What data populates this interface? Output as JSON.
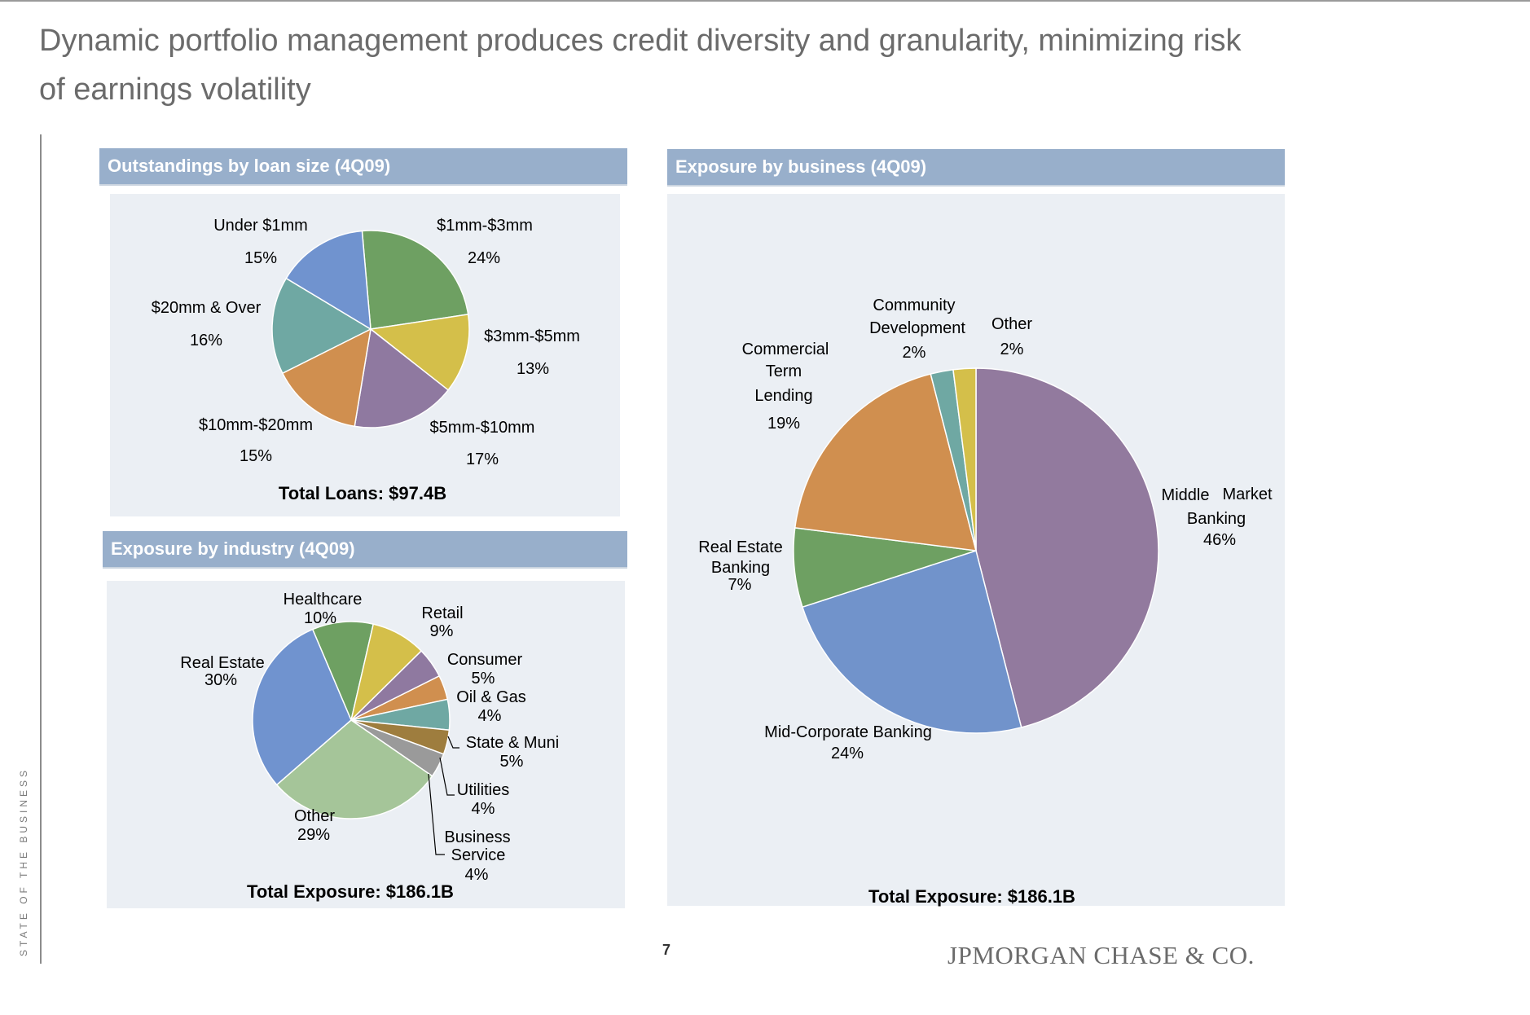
{
  "page": {
    "title_line1": "Dynamic portfolio management produces credit diversity and granularity, minimizing risk",
    "title_line2": "of earnings volatility",
    "side_label": "STATE OF THE BUSINESS",
    "page_number": "7",
    "logo_text": "JPMORGAN CHASE & CO."
  },
  "chart_data": [
    {
      "id": "loan-size",
      "type": "pie",
      "title": "Outstandings by loan size (4Q09)",
      "total_label": "Total Loans: $97.4B",
      "slices": [
        {
          "name": "$1mm-$3mm",
          "value": 24,
          "pct": "24%",
          "color": "#6ea062"
        },
        {
          "name": "$3mm-$5mm",
          "value": 13,
          "pct": "13%",
          "color": "#d4bf4a"
        },
        {
          "name": "$5mm-$10mm",
          "value": 17,
          "pct": "17%",
          "color": "#8f79a0"
        },
        {
          "name": "$10mm-$20mm",
          "value": 15,
          "pct": "15%",
          "color": "#d08f4f"
        },
        {
          "name": "$20mm & Over",
          "value": 16,
          "pct": "16%",
          "color": "#6fa8a3"
        },
        {
          "name": "Under $1mm",
          "value": 15,
          "pct": "15%",
          "color": "#7093cf"
        }
      ]
    },
    {
      "id": "industry",
      "type": "pie",
      "title": "Exposure by industry (4Q09)",
      "total_label": "Total Exposure: $186.1B",
      "slices": [
        {
          "name": "Healthcare",
          "value": 10,
          "pct": "10%",
          "color": "#6ea062"
        },
        {
          "name": "Retail",
          "value": 9,
          "pct": "9%",
          "color": "#d4bf4a"
        },
        {
          "name": "Consumer",
          "value": 5,
          "pct": "5%",
          "color": "#8f79a0"
        },
        {
          "name": "Oil & Gas",
          "value": 4,
          "pct": "4%",
          "color": "#d08f4f"
        },
        {
          "name": "State & Muni",
          "value": 5,
          "pct": "5%",
          "color": "#6fa8a3"
        },
        {
          "name": "Utilities",
          "value": 4,
          "pct": "4%",
          "color": "#9e7d3e"
        },
        {
          "name": "Business Service",
          "value": 4,
          "pct": "4%",
          "color": "#9a9a9a"
        },
        {
          "name": "Other",
          "value": 29,
          "pct": "29%",
          "color": "#a5c599"
        },
        {
          "name": "Real Estate",
          "value": 30,
          "pct": "30%",
          "color": "#7093cf"
        }
      ]
    },
    {
      "id": "business",
      "type": "pie",
      "title": "Exposure by business (4Q09)",
      "total_label": "Total Exposure: $186.1B",
      "slices": [
        {
          "name": "Middle Market Banking",
          "value": 46,
          "pct": "46%",
          "color": "#927a9e"
        },
        {
          "name": "Mid-Corporate Banking",
          "value": 24,
          "pct": "24%",
          "color": "#7193cb"
        },
        {
          "name": "Real Estate Banking",
          "value": 7,
          "pct": "7%",
          "color": "#6ea062"
        },
        {
          "name": "Commercial Term Lending",
          "value": 19,
          "pct": "19%",
          "color": "#d08f4f"
        },
        {
          "name": "Community Development",
          "value": 2,
          "pct": "2%",
          "color": "#6fa8a3"
        },
        {
          "name": "Other",
          "value": 2,
          "pct": "2%",
          "color": "#d4bf4a"
        }
      ]
    }
  ],
  "labels": {
    "loan": {
      "under1": "Under $1mm",
      "under1_pct": "15%",
      "m1_3": "$1mm-$3mm",
      "m1_3_pct": "24%",
      "m3_5": "$3mm-$5mm",
      "m3_5_pct": "13%",
      "m5_10": "$5mm-$10mm",
      "m5_10_pct": "17%",
      "m10_20": "$10mm-$20mm",
      "m10_20_pct": "15%",
      "m20": "$20mm & Over",
      "m20_pct": "16%"
    },
    "ind": {
      "healthcare": "Healthcare",
      "healthcare_pct": "10%",
      "retail": "Retail",
      "retail_pct": "9%",
      "consumer": "Consumer",
      "consumer_pct": "5%",
      "oil": "Oil & Gas",
      "oil_pct": "4%",
      "state": "State & Muni",
      "state_pct": "5%",
      "utilities": "Utilities",
      "utilities_pct": "4%",
      "business_1": "Business",
      "business_2": "Service",
      "business_pct": "4%",
      "other": "Other",
      "other_pct": "29%",
      "realestate": "Real Estate",
      "realestate_pct": "30%"
    },
    "bus": {
      "community_1": "Community",
      "community_2": "Development",
      "community_pct": "2%",
      "other": "Other",
      "other_pct": "2%",
      "ctl_1": "Commercial",
      "ctl_2": "Term",
      "ctl_3": "Lending",
      "ctl_pct": "19%",
      "mmb_1": "Middle",
      "mmb_2": "Market",
      "mmb_3": "Banking",
      "mmb_pct": "46%",
      "reb_1": "Real Estate",
      "reb_2": "Banking",
      "reb_pct": "7%",
      "mcb": "Mid-Corporate Banking",
      "mcb_pct": "24%"
    }
  }
}
